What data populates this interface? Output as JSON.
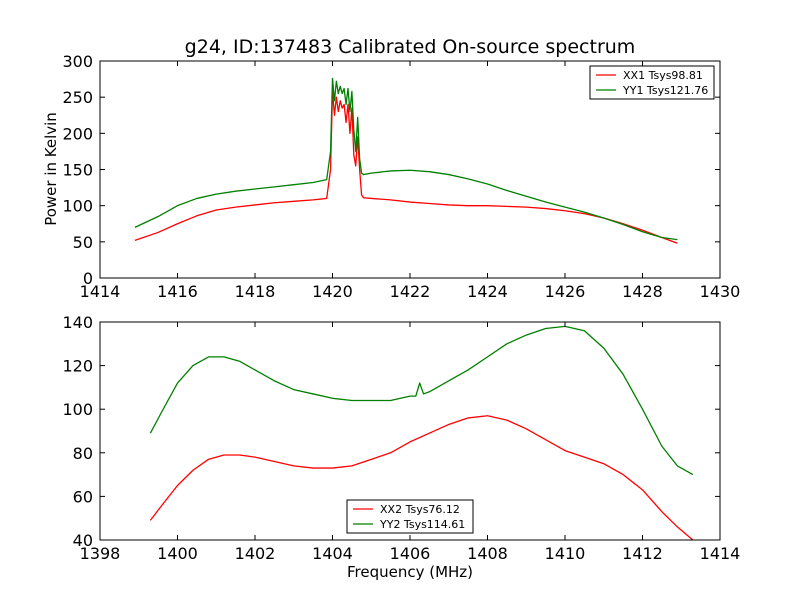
{
  "chart_data": [
    {
      "type": "line",
      "title": "g24, ID:137483 Calibrated On-source spectrum",
      "xlabel": "",
      "ylabel": "Power in Kelvin",
      "xlim": [
        1414,
        1430
      ],
      "ylim": [
        0,
        300
      ],
      "xticks": [
        "1414",
        "1416",
        "1418",
        "1420",
        "1422",
        "1424",
        "1426",
        "1428",
        "1430"
      ],
      "yticks": [
        "0",
        "50",
        "100",
        "150",
        "200",
        "250",
        "300"
      ],
      "legend_position": "top-right",
      "grid": false,
      "series": [
        {
          "name": "XX1 Tsys98.81",
          "color": "#ff0000",
          "x": [
            1414.9,
            1415.5,
            1416.0,
            1416.5,
            1417.0,
            1417.5,
            1418.0,
            1418.5,
            1419.0,
            1419.5,
            1419.85,
            1419.95,
            1420.0,
            1420.05,
            1420.1,
            1420.15,
            1420.2,
            1420.25,
            1420.3,
            1420.35,
            1420.4,
            1420.45,
            1420.5,
            1420.55,
            1420.6,
            1420.65,
            1420.7,
            1420.75,
            1420.8,
            1421.0,
            1421.5,
            1422.0,
            1422.5,
            1423.0,
            1423.5,
            1424.0,
            1424.5,
            1425.0,
            1425.5,
            1426.0,
            1426.5,
            1427.0,
            1427.5,
            1428.0,
            1428.5,
            1428.9
          ],
          "y": [
            52,
            63,
            75,
            86,
            94,
            98,
            101,
            104,
            106,
            108,
            110,
            150,
            258,
            225,
            250,
            230,
            245,
            235,
            240,
            215,
            240,
            200,
            235,
            170,
            155,
            195,
            150,
            115,
            111,
            110,
            108,
            105,
            103,
            101,
            100,
            100,
            99,
            98,
            96,
            93,
            89,
            83,
            75,
            66,
            56,
            48
          ]
        },
        {
          "name": "YY1 Tsys121.76",
          "color": "#008000",
          "x": [
            1414.9,
            1415.5,
            1416.0,
            1416.5,
            1417.0,
            1417.5,
            1418.0,
            1418.5,
            1419.0,
            1419.5,
            1419.85,
            1419.95,
            1420.0,
            1420.05,
            1420.1,
            1420.15,
            1420.2,
            1420.25,
            1420.3,
            1420.35,
            1420.4,
            1420.45,
            1420.5,
            1420.55,
            1420.6,
            1420.65,
            1420.7,
            1420.75,
            1420.8,
            1421.0,
            1421.5,
            1422.0,
            1422.5,
            1423.0,
            1423.5,
            1424.0,
            1424.5,
            1425.0,
            1425.5,
            1426.0,
            1426.5,
            1427.0,
            1427.5,
            1428.0,
            1428.5,
            1428.9
          ],
          "y": [
            70,
            85,
            100,
            110,
            116,
            120,
            123,
            126,
            129,
            132,
            136,
            175,
            276,
            245,
            272,
            255,
            265,
            255,
            262,
            240,
            262,
            230,
            258,
            205,
            175,
            222,
            165,
            145,
            143,
            145,
            148,
            149,
            147,
            143,
            137,
            130,
            121,
            113,
            105,
            98,
            91,
            83,
            74,
            64,
            56,
            53
          ]
        }
      ]
    },
    {
      "type": "line",
      "title": "",
      "xlabel": "Frequency (MHz)",
      "ylabel": "",
      "xlim": [
        1398,
        1414
      ],
      "ylim": [
        40,
        140
      ],
      "xticks": [
        "1398",
        "1400",
        "1402",
        "1404",
        "1406",
        "1408",
        "1410",
        "1412",
        "1414"
      ],
      "yticks": [
        "40",
        "60",
        "80",
        "100",
        "120",
        "140"
      ],
      "legend_position": "bottom-center",
      "grid": false,
      "series": [
        {
          "name": "XX2 Tsys76.12",
          "color": "#ff0000",
          "x": [
            1399.3,
            1399.6,
            1400.0,
            1400.4,
            1400.8,
            1401.2,
            1401.6,
            1402.0,
            1402.5,
            1403.0,
            1403.5,
            1404.0,
            1404.5,
            1405.0,
            1405.5,
            1406.0,
            1406.5,
            1407.0,
            1407.5,
            1408.0,
            1408.5,
            1409.0,
            1409.5,
            1410.0,
            1410.5,
            1411.0,
            1411.5,
            1412.0,
            1412.5,
            1412.9,
            1413.3
          ],
          "y": [
            49,
            56,
            65,
            72,
            77,
            79,
            79,
            78,
            76,
            74,
            73,
            73,
            74,
            77,
            80,
            85,
            89,
            93,
            96,
            97,
            95,
            91,
            86,
            81,
            78,
            75,
            70,
            63,
            53,
            46,
            40
          ]
        },
        {
          "name": "YY2 Tsys114.61",
          "color": "#008000",
          "x": [
            1399.3,
            1399.6,
            1400.0,
            1400.4,
            1400.8,
            1401.2,
            1401.6,
            1402.0,
            1402.5,
            1403.0,
            1403.5,
            1404.0,
            1404.5,
            1405.0,
            1405.5,
            1406.0,
            1406.15,
            1406.25,
            1406.35,
            1406.5,
            1407.0,
            1407.5,
            1408.0,
            1408.5,
            1409.0,
            1409.5,
            1410.0,
            1410.5,
            1411.0,
            1411.5,
            1412.0,
            1412.5,
            1412.9,
            1413.3
          ],
          "y": [
            89,
            99,
            112,
            120,
            124,
            124,
            122,
            118,
            113,
            109,
            107,
            105,
            104,
            104,
            104,
            106,
            106,
            112,
            107,
            108,
            113,
            118,
            124,
            130,
            134,
            137,
            138,
            136,
            128,
            116,
            100,
            83,
            74,
            70
          ]
        }
      ]
    }
  ]
}
